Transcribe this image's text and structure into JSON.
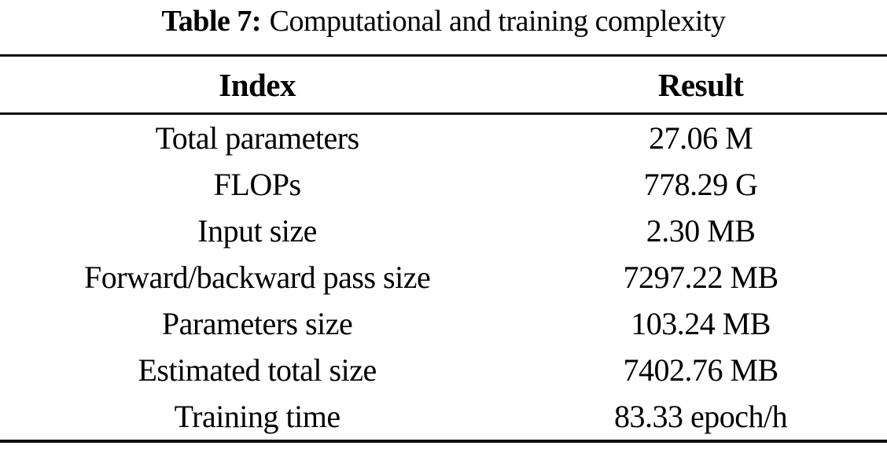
{
  "caption": {
    "label": "Table 7:",
    "text": "Computational and training complexity"
  },
  "table": {
    "columns": [
      "Index",
      "Result"
    ],
    "rows": [
      {
        "index": "Total parameters",
        "result": "27.06 M"
      },
      {
        "index": "FLOPs",
        "result": "778.29 G"
      },
      {
        "index": "Input size",
        "result": "2.30 MB"
      },
      {
        "index": "Forward/backward pass size",
        "result": "7297.22 MB"
      },
      {
        "index": "Parameters size",
        "result": "103.24 MB"
      },
      {
        "index": "Estimated total size",
        "result": "7402.76 MB"
      },
      {
        "index": "Training time",
        "result": "83.33 epoch/h"
      }
    ]
  },
  "colors": {
    "text": "#000000",
    "background": "#ffffff",
    "rule": "#0c0c0c"
  }
}
